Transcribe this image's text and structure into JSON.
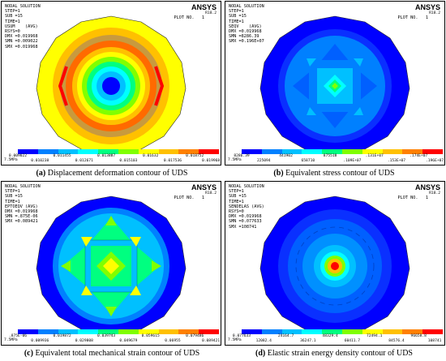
{
  "palette": [
    "#0000ff",
    "#0080ff",
    "#00c0ff",
    "#00ffff",
    "#00ff80",
    "#80ff00",
    "#ffff00",
    "#ffc000",
    "#ff8000",
    "#ff0000"
  ],
  "panels": [
    {
      "brand": "ANSYS",
      "release": "R18.2",
      "plot_no": "PLOT NO.   1",
      "info": "NODAL SOLUTION\nSTEP=1\nSUB =15\nTIME=1\nUSUM    (AVG)\nRSYS=0\nDMX =0.019968\nSMN =0.009022\nSMX =0.019968",
      "units": "7.5MPa",
      "ticks_top": [
        "0.009022",
        "0.011455",
        "0.013887",
        "0.01632",
        "0.018752"
      ],
      "ticks_bottom": [
        "0.010238",
        "0.012671",
        "0.015103",
        "0.017536",
        "0.019968"
      ],
      "caption_label": "(a)",
      "caption_text": " Displacement deformation contour of UDS"
    },
    {
      "brand": "ANSYS",
      "release": "R18.2",
      "plot_no": "PLOT NO.   1",
      "info": "NODAL SOLUTION\nSTEP=1\nSUB =15\nTIME=1\nSEQV    (AVG)\nDMX =0.019968\nSMN =8286.39\nSMX =0.196E+07",
      "units": "7.5MPa",
      "ticks_top": [
        "8286.39",
        "441902",
        "875518",
        ".131E+07",
        ".174E+07"
      ],
      "ticks_bottom": [
        "225094",
        "658710",
        ".109E+07",
        ".153E+07",
        ".196E+07"
      ],
      "caption_label": "(b)",
      "caption_text": " Equivalent stress contour of UDS"
    },
    {
      "brand": "ANSYS",
      "release": "R18.2",
      "plot_no": "PLOT NO.   1",
      "info": "NODAL SOLUTION\nSTEP=1\nSUB =15\nTIME=1\nEPTOEQV (AVG)\nDMX =0.019968\nSMN =.875E-06\nSMX =0.089421",
      "units": "7.5MPa",
      "ticks_top": [
        ".875E-06",
        "0.019872",
        "0.039743",
        "0.059615",
        "0.079486"
      ],
      "ticks_bottom": [
        "0.009936",
        "0.029808",
        "0.049679",
        "0.06955",
        "0.089421"
      ],
      "caption_label": "(c)",
      "caption_text": " Equivalent total mechanical strain contour of UDS"
    },
    {
      "brand": "ANSYS",
      "release": "R18.2",
      "plot_no": "PLOT NO.   1",
      "info": "NODAL SOLUTION\nSTEP=1\nSUB =15\nTIME=1\nSENDELAS (AVG)\nRSYS=0\nDMX =0.019968\nSMN =0.077633\nSMX =108741",
      "units": "7.5MPa",
      "ticks_top": [
        "0.077633",
        "24164.7",
        "48329.4",
        "72494.1",
        "96658.8"
      ],
      "ticks_bottom": [
        "12082.4",
        "36247.1",
        "60411.7",
        "84576.4",
        "108741"
      ],
      "caption_label": "(d)",
      "caption_text": " Elastic strain energy density contour of UDS"
    }
  ]
}
